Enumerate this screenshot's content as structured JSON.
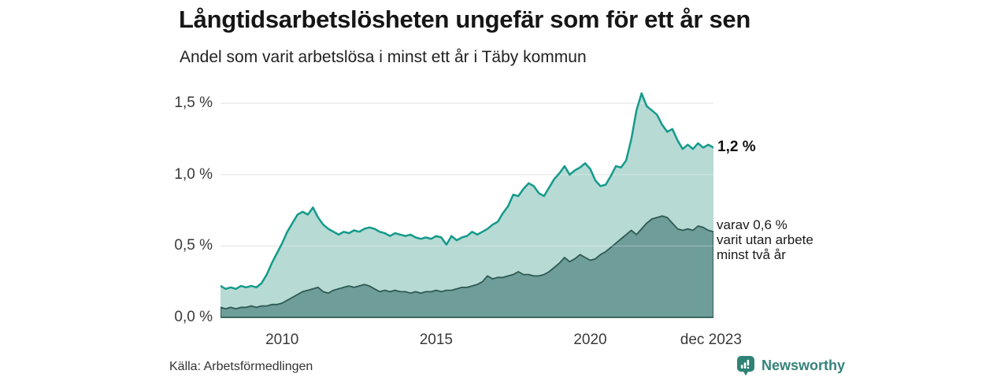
{
  "chart_data": {
    "type": "area",
    "title": "Långtidsarbetslösheten ungefär som för ett år sen",
    "subtitle": "Andel som varit arbetslösa i minst ett år i Täby kommun",
    "source": "Källa: Arbetsförmedlingen",
    "x_unit": "decimal_year",
    "x_start": 2008.0,
    "x_step": 0.1666667,
    "xlim": [
      2008,
      2024
    ],
    "ylim": [
      0,
      1.65
    ],
    "grid": "horizontal",
    "legend": "none",
    "gridline_color": "#dadada",
    "xticks": [
      {
        "t": 2010,
        "label": "2010"
      },
      {
        "t": 2015,
        "label": "2015"
      },
      {
        "t": 2020,
        "label": "2020"
      },
      {
        "t": 2023.92,
        "label": "dec 2023"
      }
    ],
    "yticks": [
      {
        "v": 0.0,
        "label": "0,0 %"
      },
      {
        "v": 0.5,
        "label": "0,5 %"
      },
      {
        "v": 1.0,
        "label": "1,0 %"
      },
      {
        "v": 1.5,
        "label": "1,5 %"
      }
    ],
    "series": [
      {
        "name": "Arbetslösa minst ett år",
        "color": "#149a8b",
        "fill": "#b7dad4",
        "latest": 1.19,
        "values": [
          0.22,
          0.2,
          0.21,
          0.2,
          0.22,
          0.21,
          0.22,
          0.21,
          0.24,
          0.3,
          0.38,
          0.45,
          0.52,
          0.6,
          0.66,
          0.72,
          0.74,
          0.72,
          0.77,
          0.7,
          0.65,
          0.62,
          0.6,
          0.58,
          0.6,
          0.59,
          0.61,
          0.6,
          0.62,
          0.63,
          0.62,
          0.6,
          0.59,
          0.57,
          0.59,
          0.58,
          0.57,
          0.58,
          0.56,
          0.55,
          0.56,
          0.55,
          0.57,
          0.56,
          0.51,
          0.57,
          0.54,
          0.56,
          0.57,
          0.6,
          0.58,
          0.6,
          0.62,
          0.65,
          0.67,
          0.73,
          0.78,
          0.86,
          0.85,
          0.9,
          0.94,
          0.92,
          0.87,
          0.85,
          0.91,
          0.97,
          1.01,
          1.06,
          1.0,
          1.03,
          1.05,
          1.08,
          1.04,
          0.96,
          0.92,
          0.93,
          0.99,
          1.06,
          1.05,
          1.1,
          1.25,
          1.45,
          1.57,
          1.48,
          1.45,
          1.42,
          1.35,
          1.3,
          1.32,
          1.24,
          1.18,
          1.21,
          1.18,
          1.22,
          1.19,
          1.21,
          1.19
        ]
      },
      {
        "name": "Varav utan arbete minst två år",
        "color": "#2d5a52",
        "fill": "#6f9d99",
        "latest": 0.6,
        "values": [
          0.07,
          0.06,
          0.07,
          0.06,
          0.07,
          0.07,
          0.08,
          0.07,
          0.08,
          0.08,
          0.09,
          0.09,
          0.1,
          0.12,
          0.14,
          0.16,
          0.18,
          0.19,
          0.2,
          0.21,
          0.18,
          0.17,
          0.19,
          0.2,
          0.21,
          0.22,
          0.21,
          0.22,
          0.23,
          0.22,
          0.2,
          0.18,
          0.19,
          0.18,
          0.19,
          0.18,
          0.18,
          0.17,
          0.18,
          0.17,
          0.18,
          0.18,
          0.19,
          0.18,
          0.19,
          0.19,
          0.2,
          0.21,
          0.21,
          0.22,
          0.23,
          0.25,
          0.29,
          0.27,
          0.28,
          0.28,
          0.29,
          0.3,
          0.32,
          0.3,
          0.3,
          0.29,
          0.29,
          0.3,
          0.32,
          0.35,
          0.38,
          0.42,
          0.39,
          0.41,
          0.44,
          0.42,
          0.4,
          0.41,
          0.44,
          0.46,
          0.49,
          0.52,
          0.55,
          0.58,
          0.61,
          0.58,
          0.62,
          0.66,
          0.69,
          0.7,
          0.71,
          0.7,
          0.66,
          0.62,
          0.61,
          0.62,
          0.61,
          0.64,
          0.63,
          0.61,
          0.6
        ]
      }
    ],
    "annotations": [
      {
        "text": "1,2 %",
        "v": 1.19
      },
      {
        "lines": [
          "varav 0,6 %",
          "varit utan arbete",
          "minst två år"
        ],
        "v": 0.6
      }
    ]
  },
  "footer": {
    "brand": "Newsworthy",
    "brand_color": "#2f8276",
    "brand_text_color": "#35837a"
  }
}
